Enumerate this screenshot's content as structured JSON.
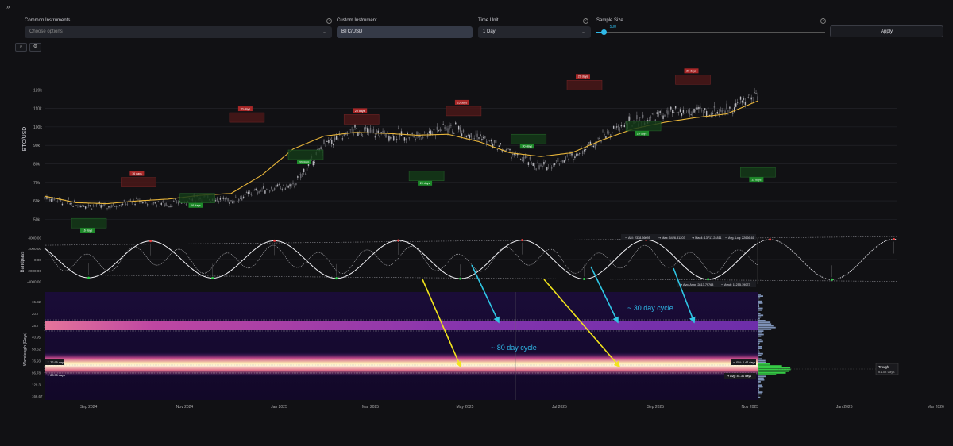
{
  "topbar": {
    "expand_icon": "»"
  },
  "controls": {
    "common": {
      "label": "Common Instruments",
      "placeholder": "Choose options"
    },
    "custom": {
      "label": "Custom Instrument",
      "value": "BTC/USD"
    },
    "time_unit": {
      "label": "Time Unit",
      "value": "1 Day"
    },
    "sample": {
      "label": "Sample Size",
      "value": "500",
      "fraction": 0.03
    },
    "apply_label": "Apply"
  },
  "tools": {
    "zoom": "⌕",
    "settings": "⚙"
  },
  "chart_data": [
    {
      "type": "line",
      "name": "price",
      "ylabel": "BTC/USD",
      "ylim": [
        42000,
        130000
      ],
      "yticks": [
        {
          "v": 50000,
          "t": "50k"
        },
        {
          "v": 60000,
          "t": "60k"
        },
        {
          "v": 70000,
          "t": "70k"
        },
        {
          "v": 80000,
          "t": "80k"
        },
        {
          "v": 90000,
          "t": "90k"
        },
        {
          "v": 100000,
          "t": "100k"
        },
        {
          "v": 110000,
          "t": "110k"
        },
        {
          "v": 120000,
          "t": "120k"
        }
      ],
      "x": [
        0,
        20,
        40,
        60,
        80,
        100,
        120,
        140,
        160,
        180,
        200,
        220,
        240,
        260,
        280,
        300,
        320,
        340,
        360,
        380,
        400,
        420,
        440,
        460
      ],
      "close": [
        62000,
        58000,
        57000,
        60000,
        58000,
        62000,
        60000,
        66000,
        68000,
        90000,
        98000,
        96000,
        95000,
        100000,
        95000,
        86000,
        78000,
        84000,
        95000,
        103000,
        107000,
        108000,
        109000,
        118000
      ],
      "smooth": [
        62500,
        59000,
        58500,
        60000,
        61000,
        63000,
        64000,
        74000,
        88000,
        95000,
        97000,
        96500,
        95500,
        96000,
        92000,
        86000,
        84000,
        86000,
        93000,
        99000,
        102500,
        105000,
        107000,
        114000
      ],
      "annotations": [
        {
          "x": 20,
          "v": 50500,
          "text": "16 days",
          "kind": "trough"
        },
        {
          "x": 52,
          "v": 67500,
          "text": "16 days",
          "kind": "peak"
        },
        {
          "x": 90,
          "v": 64000,
          "text": "16 days",
          "kind": "trough"
        },
        {
          "x": 122,
          "v": 102500,
          "text": "20 days",
          "kind": "peak"
        },
        {
          "x": 160,
          "v": 87500,
          "text": "30 days",
          "kind": "trough"
        },
        {
          "x": 196,
          "v": 101500,
          "text": "20 days",
          "kind": "peak"
        },
        {
          "x": 238,
          "v": 76000,
          "text": "20 days",
          "kind": "trough"
        },
        {
          "x": 262,
          "v": 106000,
          "text": "25 days",
          "kind": "peak"
        },
        {
          "x": 304,
          "v": 96000,
          "text": "30 days",
          "kind": "trough"
        },
        {
          "x": 340,
          "v": 120000,
          "text": "29 days",
          "kind": "peak"
        },
        {
          "x": 378,
          "v": 103000,
          "text": "25 days",
          "kind": "trough"
        },
        {
          "x": 410,
          "v": 123000,
          "text": "29 days",
          "kind": "peak"
        },
        {
          "x": 452,
          "v": 78000,
          "text": "11 days",
          "kind": "trough"
        }
      ]
    },
    {
      "type": "line",
      "name": "oscillator",
      "ylabel": "Bandpass",
      "ylim": [
        -4500,
        4500
      ],
      "yticks": [
        {
          "v": 4000,
          "t": "4000.00"
        },
        {
          "v": 2000,
          "t": "2000.00"
        },
        {
          "v": 0,
          "t": "0.00"
        },
        {
          "v": -2000,
          "t": "-2000.00"
        },
        {
          "v": -4000,
          "t": "-4000.00"
        }
      ],
      "period_days": 80,
      "amplitude": 3700,
      "stats_top": [
        "AM: 2338.56095",
        "Max: 5426.31203",
        "Max4: 13717.24811",
        "Avg. Log: 22666.61"
      ],
      "stats_bottom": [
        "Avg. Amp: 2813.79768",
        "Avg4: 11255.19073"
      ]
    },
    {
      "type": "heatmap",
      "name": "spectrogram",
      "ylabel": "Wavelength (Days)",
      "yticks": [
        "15.82",
        "20.7",
        "28.7",
        "40.95",
        "58.62",
        "76.93",
        "96.78",
        "129.3",
        "166.67"
      ],
      "bands": [
        {
          "label": "~ 30 day cycle",
          "wavelength": 30
        },
        {
          "label": "~ 80 day cycle",
          "wavelength": 80
        }
      ],
      "markers": {
        "fm_label": "FM: 4.47 days",
        "avg_label": "Avg: 81.31 days",
        "left_top": "72.95 days",
        "left_bottom": "88.95 days",
        "trough_title": "Trough",
        "trough_value": "81.02 days"
      }
    }
  ],
  "xaxis": {
    "labels": [
      {
        "x": 28,
        "t": "Sep 2024"
      },
      {
        "x": 90,
        "t": "Nov 2024"
      },
      {
        "x": 151,
        "t": "Jan 2025"
      },
      {
        "x": 210,
        "t": "Mar 2025"
      },
      {
        "x": 271,
        "t": "May 2025"
      },
      {
        "x": 332,
        "t": "Jul 2025"
      },
      {
        "x": 394,
        "t": "Sep 2025"
      },
      {
        "x": 455,
        "t": "Nov 2025"
      },
      {
        "x": 516,
        "t": "Jan 2026"
      },
      {
        "x": 575,
        "t": "Mar 2026"
      }
    ]
  },
  "colors": {
    "ma": "#e8b53a",
    "peak": "#e84040",
    "trough": "#2ed04a",
    "arrow_yellow": "#f2e51c",
    "arrow_cyan": "#2fc6e4",
    "annot_text": "#2fb9e8"
  }
}
